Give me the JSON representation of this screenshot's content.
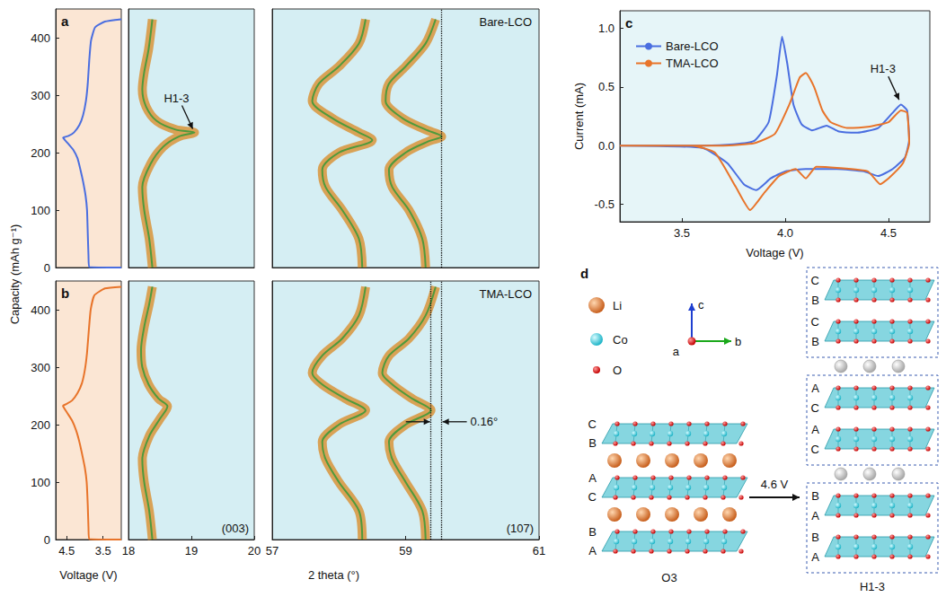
{
  "shared_labels": {
    "capacity": "Capacity (mAh g⁻¹)",
    "voltage": "Voltage (V)",
    "two_theta": "2 theta (°)"
  },
  "chart_data": [
    {
      "type": "line",
      "panel_label": "a",
      "xlim": [
        4.8,
        3.0
      ],
      "ylim": [
        0,
        450
      ],
      "yticks": [
        0,
        100,
        200,
        300,
        400
      ],
      "tick_labels": "y",
      "series": [
        {
          "color": "#4a6ee0",
          "line_style": "solid",
          "points": [
            [
              3.0,
              0
            ],
            [
              3.88,
              1
            ],
            [
              3.9,
              20
            ],
            [
              3.92,
              60
            ],
            [
              3.94,
              100
            ],
            [
              3.98,
              125
            ],
            [
              4.05,
              150
            ],
            [
              4.12,
              170
            ],
            [
              4.2,
              190
            ],
            [
              4.32,
              205
            ],
            [
              4.45,
              215
            ],
            [
              4.55,
              222
            ],
            [
              4.6,
              226
            ],
            [
              4.45,
              229
            ],
            [
              4.3,
              235
            ],
            [
              4.15,
              248
            ],
            [
              4.05,
              265
            ],
            [
              3.97,
              290
            ],
            [
              3.92,
              320
            ],
            [
              3.88,
              360
            ],
            [
              3.83,
              395
            ],
            [
              3.72,
              418
            ],
            [
              3.45,
              428
            ],
            [
              3.0,
              432
            ]
          ]
        }
      ]
    },
    {
      "type": "line",
      "xlim": [
        18,
        20
      ],
      "ylim": [
        0,
        450
      ],
      "tick_labels": false,
      "annotations": [
        {
          "text": "H1-3",
          "x": 19.05,
          "y": 235
        }
      ],
      "series": [
        {
          "color": "#d98f2e",
          "line_style": "glow",
          "points": [
            [
              18.38,
              0
            ],
            [
              18.33,
              50
            ],
            [
              18.25,
              100
            ],
            [
              18.22,
              140
            ],
            [
              18.35,
              180
            ],
            [
              18.55,
              210
            ],
            [
              18.8,
              228
            ],
            [
              19.05,
              235
            ],
            [
              18.75,
              240
            ],
            [
              18.45,
              255
            ],
            [
              18.28,
              280
            ],
            [
              18.22,
              310
            ],
            [
              18.25,
              340
            ],
            [
              18.32,
              380
            ],
            [
              18.38,
              432
            ]
          ]
        }
      ]
    },
    {
      "type": "line",
      "title": "Bare-LCO",
      "xlim": [
        57,
        61
      ],
      "ylim": [
        0,
        450
      ],
      "tick_labels": false,
      "ref_lines": [
        59.54
      ],
      "series": [
        {
          "color": "#d98f2e",
          "line_style": "glow",
          "points": [
            [
              58.35,
              0
            ],
            [
              58.3,
              50
            ],
            [
              58.05,
              100
            ],
            [
              57.8,
              140
            ],
            [
              57.75,
              170
            ],
            [
              58.0,
              200
            ],
            [
              58.5,
              222
            ],
            [
              58.3,
              235
            ],
            [
              57.9,
              260
            ],
            [
              57.6,
              290
            ],
            [
              57.7,
              320
            ],
            [
              58.0,
              350
            ],
            [
              58.3,
              390
            ],
            [
              58.4,
              432
            ]
          ]
        },
        {
          "color": "#d98f2e",
          "line_style": "glow",
          "points": [
            [
              59.3,
              0
            ],
            [
              59.25,
              50
            ],
            [
              59.05,
              100
            ],
            [
              58.8,
              140
            ],
            [
              58.75,
              170
            ],
            [
              59.0,
              200
            ],
            [
              59.35,
              220
            ],
            [
              59.54,
              228
            ],
            [
              59.3,
              240
            ],
            [
              58.95,
              260
            ],
            [
              58.7,
              290
            ],
            [
              58.75,
              320
            ],
            [
              59.0,
              350
            ],
            [
              59.3,
              390
            ],
            [
              59.45,
              432
            ]
          ]
        }
      ]
    },
    {
      "type": "line",
      "panel_label": "b",
      "xlim": [
        4.8,
        3.0
      ],
      "xticks": [
        4.5,
        3.5
      ],
      "ylim": [
        0,
        450
      ],
      "yticks": [
        0,
        100,
        200,
        300,
        400
      ],
      "tick_labels": true,
      "series": [
        {
          "color": "#e8742a",
          "line_style": "solid",
          "points": [
            [
              3.0,
              0
            ],
            [
              3.88,
              1
            ],
            [
              3.9,
              20
            ],
            [
              3.92,
              60
            ],
            [
              3.95,
              100
            ],
            [
              4.0,
              125
            ],
            [
              4.08,
              150
            ],
            [
              4.15,
              170
            ],
            [
              4.24,
              190
            ],
            [
              4.35,
              207
            ],
            [
              4.48,
              220
            ],
            [
              4.57,
              229
            ],
            [
              4.6,
              233
            ],
            [
              4.5,
              236
            ],
            [
              4.35,
              242
            ],
            [
              4.2,
              255
            ],
            [
              4.08,
              272
            ],
            [
              4.0,
              295
            ],
            [
              3.94,
              325
            ],
            [
              3.89,
              365
            ],
            [
              3.84,
              400
            ],
            [
              3.74,
              425
            ],
            [
              3.45,
              437
            ],
            [
              3.0,
              440
            ]
          ]
        }
      ]
    },
    {
      "type": "line",
      "reflection": "(003)",
      "xlim": [
        18,
        20
      ],
      "xticks": [
        18,
        19,
        20
      ],
      "ylim": [
        0,
        450
      ],
      "tick_labels": "x",
      "series": [
        {
          "color": "#d98f2e",
          "line_style": "glow",
          "points": [
            [
              18.38,
              0
            ],
            [
              18.33,
              50
            ],
            [
              18.25,
              100
            ],
            [
              18.22,
              140
            ],
            [
              18.33,
              180
            ],
            [
              18.5,
              210
            ],
            [
              18.62,
              232
            ],
            [
              18.48,
              245
            ],
            [
              18.32,
              270
            ],
            [
              18.22,
              300
            ],
            [
              18.2,
              330
            ],
            [
              18.25,
              370
            ],
            [
              18.33,
              410
            ],
            [
              18.38,
              440
            ]
          ]
        }
      ]
    },
    {
      "type": "line",
      "title": "TMA-LCO",
      "reflection": "(107)",
      "xlim": [
        57,
        61
      ],
      "xticks": [
        57,
        59,
        61
      ],
      "ylim": [
        0,
        450
      ],
      "tick_labels": "x",
      "ref_lines": [
        59.54,
        59.38
      ],
      "measure": {
        "text": "0.16°",
        "x": [
          59.38,
          59.54
        ],
        "y": 205
      },
      "series": [
        {
          "color": "#d98f2e",
          "line_style": "glow",
          "points": [
            [
              58.35,
              0
            ],
            [
              58.3,
              50
            ],
            [
              58.0,
              100
            ],
            [
              57.8,
              140
            ],
            [
              57.75,
              170
            ],
            [
              58.0,
              200
            ],
            [
              58.4,
              225
            ],
            [
              58.1,
              245
            ],
            [
              57.75,
              270
            ],
            [
              57.6,
              290
            ],
            [
              57.75,
              320
            ],
            [
              58.05,
              350
            ],
            [
              58.3,
              390
            ],
            [
              58.4,
              440
            ]
          ]
        },
        {
          "color": "#d98f2e",
          "line_style": "glow",
          "points": [
            [
              59.3,
              0
            ],
            [
              59.25,
              50
            ],
            [
              59.0,
              100
            ],
            [
              58.8,
              140
            ],
            [
              58.75,
              170
            ],
            [
              59.0,
              200
            ],
            [
              59.38,
              225
            ],
            [
              59.1,
              245
            ],
            [
              58.8,
              270
            ],
            [
              58.65,
              290
            ],
            [
              58.75,
              320
            ],
            [
              59.05,
              350
            ],
            [
              59.3,
              390
            ],
            [
              59.45,
              440
            ]
          ]
        }
      ]
    },
    {
      "type": "line",
      "panel_label": "c",
      "xlabel": "Voltage (V)",
      "ylabel": "Current (mA)",
      "xlim": [
        3.2,
        4.7
      ],
      "xticks": [
        3.5,
        {
          "value": 4,
          "label": "4.0"
        },
        4.5
      ],
      "ylim": [
        -0.65,
        1.15
      ],
      "yticks": [
        -0.5,
        {
          "value": 0,
          "label": "0.0"
        },
        0.5,
        {
          "value": 1,
          "label": "1.0"
        }
      ],
      "tick_labels": true,
      "legend": "top-left",
      "annotations": [
        {
          "text": "H1-3",
          "x": 4.56,
          "y": 0.36
        }
      ],
      "series": [
        {
          "name": "Bare-LCO",
          "color": "#4a6ee0",
          "line_style": "solid",
          "points": [
            [
              3.2,
              0.0
            ],
            [
              3.6,
              0.0
            ],
            [
              3.75,
              0.01
            ],
            [
              3.85,
              0.04
            ],
            [
              3.92,
              0.2
            ],
            [
              3.96,
              0.6
            ],
            [
              3.985,
              0.93
            ],
            [
              4.01,
              0.7
            ],
            [
              4.04,
              0.35
            ],
            [
              4.08,
              0.18
            ],
            [
              4.13,
              0.13
            ],
            [
              4.2,
              0.17
            ],
            [
              4.26,
              0.12
            ],
            [
              4.35,
              0.11
            ],
            [
              4.45,
              0.15
            ],
            [
              4.52,
              0.28
            ],
            [
              4.56,
              0.35
            ],
            [
              4.59,
              0.3
            ],
            [
              4.6,
              0.05
            ],
            [
              4.58,
              -0.1
            ],
            [
              4.52,
              -0.2
            ],
            [
              4.45,
              -0.26
            ],
            [
              4.38,
              -0.22
            ],
            [
              4.25,
              -0.2
            ],
            [
              4.1,
              -0.2
            ],
            [
              4.0,
              -0.22
            ],
            [
              3.93,
              -0.28
            ],
            [
              3.86,
              -0.38
            ],
            [
              3.8,
              -0.33
            ],
            [
              3.72,
              -0.15
            ],
            [
              3.6,
              -0.02
            ],
            [
              3.2,
              0.0
            ]
          ]
        },
        {
          "name": "TMA-LCO",
          "color": "#e8742a",
          "line_style": "solid",
          "points": [
            [
              3.2,
              0.0
            ],
            [
              3.7,
              0.0
            ],
            [
              3.85,
              0.02
            ],
            [
              3.95,
              0.1
            ],
            [
              4.02,
              0.35
            ],
            [
              4.07,
              0.58
            ],
            [
              4.1,
              0.62
            ],
            [
              4.14,
              0.5
            ],
            [
              4.18,
              0.3
            ],
            [
              4.22,
              0.2
            ],
            [
              4.3,
              0.15
            ],
            [
              4.4,
              0.16
            ],
            [
              4.5,
              0.2
            ],
            [
              4.56,
              0.3
            ],
            [
              4.59,
              0.28
            ],
            [
              4.6,
              0.02
            ],
            [
              4.57,
              -0.15
            ],
            [
              4.5,
              -0.28
            ],
            [
              4.46,
              -0.33
            ],
            [
              4.4,
              -0.22
            ],
            [
              4.25,
              -0.19
            ],
            [
              4.15,
              -0.18
            ],
            [
              4.1,
              -0.28
            ],
            [
              4.05,
              -0.2
            ],
            [
              3.97,
              -0.26
            ],
            [
              3.9,
              -0.4
            ],
            [
              3.83,
              -0.55
            ],
            [
              3.76,
              -0.35
            ],
            [
              3.66,
              -0.06
            ],
            [
              3.55,
              0.0
            ],
            [
              3.2,
              0.0
            ]
          ]
        }
      ]
    }
  ],
  "diagram": {
    "panel_label": "d",
    "species": [
      "Li",
      "Co",
      "O"
    ],
    "axes": {
      "up": "c",
      "right": "b",
      "out": "a"
    },
    "structures": [
      {
        "caption": "O3",
        "layers": [
          "C",
          "B",
          "A",
          "C",
          "B",
          "A"
        ]
      },
      {
        "caption": "H1-3",
        "layers": [
          [
            "C",
            "B",
            "C",
            "B"
          ],
          [
            "A",
            "C",
            "A",
            "C"
          ],
          [
            "B",
            "A",
            "B",
            "A"
          ]
        ]
      }
    ],
    "transition": "4.6 V"
  }
}
